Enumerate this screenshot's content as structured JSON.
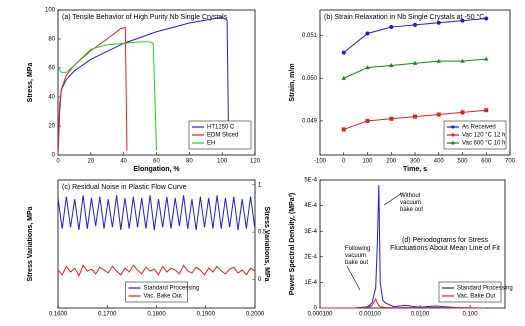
{
  "chart_data": [
    {
      "type": "line",
      "title": "(a) Tensile Behavior of High Purity Nb Single Crystals",
      "xlabel": "Elongation, %",
      "ylabel": "Stress, MPa",
      "xlim": [
        0,
        120
      ],
      "xticks": [
        0,
        20,
        40,
        60,
        80,
        100,
        120
      ],
      "ylim": [
        0,
        100
      ],
      "yticks": [
        0,
        20,
        40,
        60,
        80,
        100
      ],
      "legend": "lower right",
      "series": [
        {
          "name": "HT1250 C",
          "color": "#1f1fd0",
          "x": [
            0,
            1,
            2,
            5,
            10,
            20,
            40,
            60,
            80,
            100,
            103,
            104
          ],
          "values": [
            0,
            30,
            45,
            52,
            58,
            66,
            77,
            85,
            91,
            95,
            93,
            5
          ]
        },
        {
          "name": "EDM Sliced",
          "color": "#e02020",
          "x": [
            0,
            1,
            2,
            5,
            10,
            20,
            30,
            38,
            41,
            42
          ],
          "values": [
            0,
            35,
            45,
            55,
            62,
            72,
            80,
            87,
            88,
            3
          ]
        },
        {
          "name": "EH",
          "color": "#20d020",
          "x": [
            0,
            2,
            5,
            10,
            20,
            30,
            40,
            50,
            56,
            58,
            60
          ],
          "values": [
            60,
            57,
            57,
            62,
            73,
            76,
            77,
            78,
            78,
            77,
            3
          ]
        }
      ]
    },
    {
      "type": "line",
      "title": "(b) Strain Relaxation in Nb Single Crystals at -50 °C",
      "xlabel": "Time, s",
      "ylabel": "Strain, m/m",
      "xlim": [
        -100,
        700
      ],
      "xticks": [
        -100,
        0,
        100,
        200,
        300,
        400,
        500,
        600,
        700
      ],
      "ylim": [
        0.0482,
        0.0516
      ],
      "yticks": [
        0.049,
        {
          "value": 0.05,
          "label": "0.050"
        },
        0.051
      ],
      "legend": "lower right",
      "series": [
        {
          "name": "As Received",
          "color": "#1f1fd0",
          "marker": "circle",
          "x": [
            0,
            100,
            200,
            300,
            400,
            500,
            600
          ],
          "values": [
            0.0506,
            0.05105,
            0.0512,
            0.05125,
            0.0513,
            0.05135,
            0.0514
          ]
        },
        {
          "name": "Vac 120 °C 12 h",
          "color": "#e02020",
          "marker": "square",
          "x": [
            0,
            100,
            200,
            300,
            400,
            500,
            600
          ],
          "values": [
            0.0488,
            0.049,
            0.04905,
            0.0491,
            0.04915,
            0.0492,
            0.04925
          ]
        },
        {
          "name": "Vac 600 °C 10 h",
          "color": "#208020",
          "marker": "triangle",
          "x": [
            0,
            100,
            200,
            300,
            400,
            500,
            600
          ],
          "values": [
            0.05,
            0.05025,
            0.0503,
            0.05035,
            0.0504,
            0.0504,
            0.05045
          ]
        }
      ]
    },
    {
      "type": "line",
      "title": "(c) Residual Noise in Plastic Flow Curve",
      "ylabel": "Stress Variations, MPa",
      "ylabel_color": "#1f1fd0",
      "y2label": "Stress Variations, MPa",
      "y2label_color": "#e02020",
      "xlim": [
        0.16,
        0.2
      ],
      "xticks": [
        {
          "value": 0.16,
          "label": "0.1600"
        },
        {
          "value": 0.17,
          "label": "0.1700"
        },
        {
          "value": 0.18,
          "label": "0.1800"
        },
        {
          "value": 0.19,
          "label": "0.1900"
        },
        {
          "value": 0.2,
          "label": "0.2000"
        }
      ],
      "ylim": [
        0,
        1
      ],
      "y2lim": [
        -0.3,
        1.05
      ],
      "y2ticks": [
        0,
        0.5,
        1
      ],
      "legend": "lower center",
      "x": [
        0.16,
        0.16085,
        0.1617,
        0.16255,
        0.1634,
        0.16425,
        0.1651,
        0.16595,
        0.1668,
        0.16765,
        0.1685,
        0.16935,
        0.1702,
        0.17105,
        0.1719,
        0.17275,
        0.1736,
        0.17445,
        0.1753,
        0.17615,
        0.177,
        0.17785,
        0.1787,
        0.17955,
        0.1804,
        0.18125,
        0.1821,
        0.18295,
        0.1838,
        0.18465,
        0.1855,
        0.18635,
        0.1872,
        0.18805,
        0.1889,
        0.18975,
        0.1906,
        0.19145,
        0.1923,
        0.19315,
        0.194,
        0.19485,
        0.1957,
        0.19655,
        0.1974,
        0.19825,
        0.1991,
        0.19995
      ],
      "series": [
        {
          "name": "Standard Processing",
          "color": "#1f1fd0",
          "values": [
            0.86,
            0.62,
            0.87,
            0.63,
            0.85,
            0.61,
            0.88,
            0.62,
            0.86,
            0.64,
            0.87,
            0.62,
            0.85,
            0.63,
            0.88,
            0.61,
            0.86,
            0.62,
            0.87,
            0.63,
            0.86,
            0.62,
            0.88,
            0.61,
            0.85,
            0.63,
            0.87,
            0.62,
            0.86,
            0.64,
            0.88,
            0.62,
            0.85,
            0.61,
            0.87,
            0.63,
            0.86,
            0.62,
            0.88,
            0.62,
            0.86,
            0.63,
            0.87,
            0.61,
            0.85,
            0.62,
            0.87,
            0.63
          ]
        },
        {
          "name": "Vac. Bake Out",
          "color": "#e02020",
          "axis": "y2",
          "values": [
            0.1,
            0.05,
            0.14,
            0.08,
            0.12,
            0.04,
            0.15,
            0.09,
            0.11,
            0.06,
            0.13,
            0.1,
            0.07,
            0.14,
            0.09,
            0.05,
            0.12,
            0.08,
            0.15,
            0.1,
            0.06,
            0.13,
            0.09,
            0.11,
            0.05,
            0.14,
            0.08,
            0.12,
            0.1,
            0.06,
            0.15,
            0.09,
            0.07,
            0.13,
            0.1,
            0.05,
            0.12,
            0.08,
            0.14,
            0.09,
            0.06,
            0.11,
            0.13,
            0.07,
            0.1,
            0.05,
            0.12,
            0.09
          ]
        }
      ]
    },
    {
      "type": "line",
      "title": "(d) Periodograms for Stress Fluctuations About Mean Line of Fit",
      "ylabel": "Power Spectral Density, (MPa²)",
      "xlog": true,
      "xlim": [
        0.0001,
        0.5
      ],
      "xticks": [
        {
          "value": 0.0001,
          "label": "0.000100"
        },
        {
          "value": 0.001,
          "label": "0.00100"
        },
        {
          "value": 0.01,
          "label": "0.0100"
        },
        {
          "value": 0.1,
          "label": "0.100"
        }
      ],
      "ylim": [
        0,
        0.0005
      ],
      "yticks": [
        0,
        {
          "value": 0.0001,
          "label": "1E-4"
        },
        {
          "value": 0.0002,
          "label": "2E-4"
        },
        {
          "value": 0.0003,
          "label": "3E-4"
        },
        {
          "value": 0.0004,
          "label": "4E-4"
        },
        {
          "value": 0.0005,
          "label": "5E-4"
        }
      ],
      "legend": "lower right",
      "annotations": [
        "Without vacuum bake out",
        "Following vacuum bake out"
      ],
      "x": [
        0.0001,
        0.0005,
        0.0009,
        0.0011,
        0.0013,
        0.0014,
        0.0015,
        0.0016,
        0.0018,
        0.002,
        0.003,
        0.005,
        0.01,
        0.02,
        0.05,
        0.1,
        0.2
      ],
      "series": [
        {
          "name": "Standard Processing",
          "color": "#1f1fd0",
          "values": [
            0,
            0,
            5e-06,
            2e-05,
            8e-05,
            0.00025,
            0.00048,
            0.0001,
            3e-05,
            2e-05,
            5e-06,
            1e-05,
            3e-06,
            8e-06,
            2e-06,
            1e-06,
            0
          ]
        },
        {
          "name": "Vac. Bake Out",
          "color": "#e02020",
          "values": [
            0,
            0,
            3e-06,
            1e-05,
            3.5e-05,
            2e-05,
            1e-05,
            5e-06,
            3e-06,
            2e-06,
            1e-06,
            2e-06,
            1e-06,
            2e-06,
            0,
            0,
            0
          ]
        }
      ]
    }
  ]
}
